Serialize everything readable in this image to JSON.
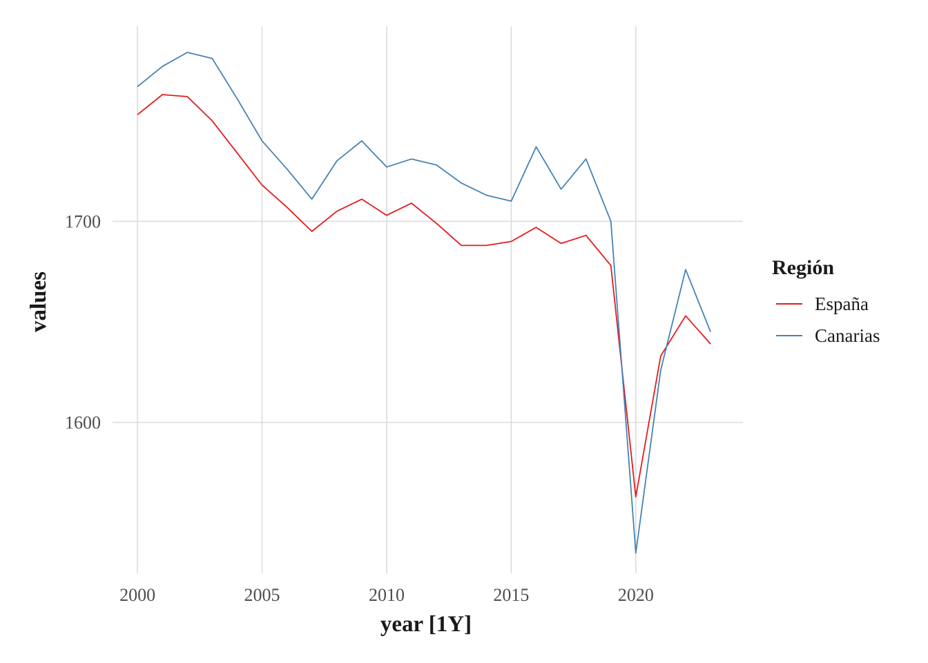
{
  "chart_data": {
    "type": "line",
    "xlabel": "year [1Y]",
    "ylabel": "values",
    "x": [
      2000,
      2001,
      2002,
      2003,
      2004,
      2005,
      2006,
      2007,
      2008,
      2009,
      2010,
      2011,
      2012,
      2013,
      2014,
      2015,
      2016,
      2017,
      2018,
      2019,
      2020,
      2021,
      2022,
      2023
    ],
    "xlim": [
      1999,
      2024.3
    ],
    "ylim": [
      1525,
      1797
    ],
    "x_ticks": [
      2000,
      2005,
      2010,
      2015,
      2020
    ],
    "x_tick_labels": [
      "2000",
      "2005",
      "2010",
      "2015",
      "2020"
    ],
    "y_ticks": [
      1600,
      1700
    ],
    "y_tick_labels": [
      "1600",
      "1700"
    ],
    "grid": "major only",
    "legend": {
      "title": "Región",
      "position": "right"
    },
    "series": [
      {
        "name": "España",
        "color": "#e41a1c",
        "values": [
          1753,
          1763,
          1762,
          1750,
          1734,
          1718,
          1707,
          1695,
          1705,
          1711,
          1703,
          1709,
          1699,
          1688,
          1688,
          1690,
          1697,
          1689,
          1693,
          1678,
          1563,
          1633,
          1653,
          1639
        ]
      },
      {
        "name": "Canarias",
        "color": "#4682b4",
        "values": [
          1767,
          1777,
          1784,
          1781,
          1761,
          1740,
          1726,
          1711,
          1730,
          1740,
          1727,
          1731,
          1728,
          1719,
          1713,
          1710,
          1737,
          1716,
          1731,
          1700,
          1535,
          1626,
          1676,
          1645
        ]
      }
    ]
  }
}
